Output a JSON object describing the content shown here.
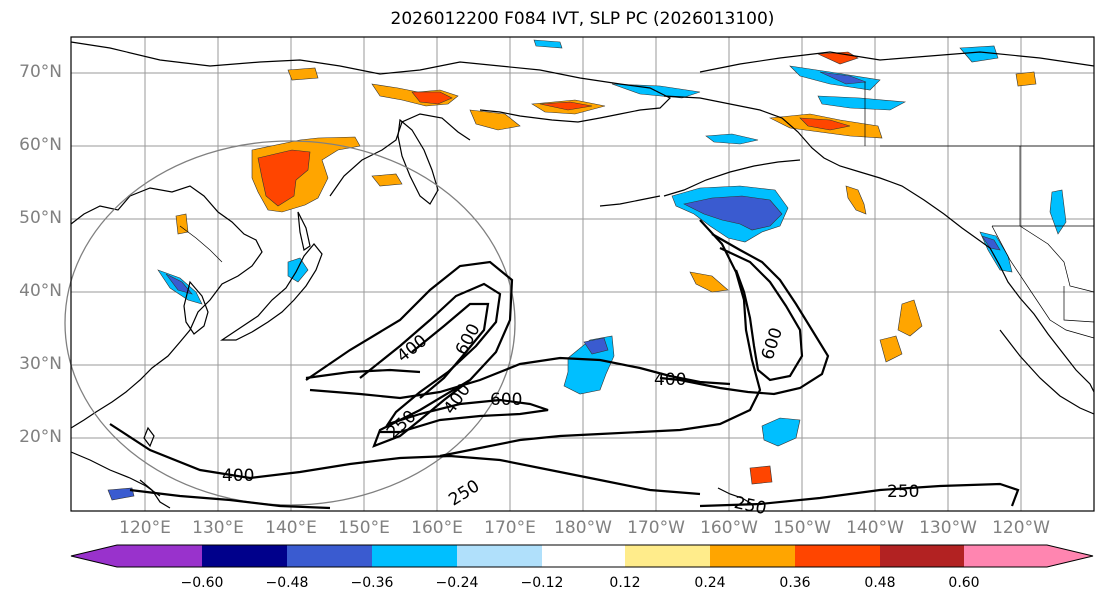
{
  "title": "2026012200 F084 IVT, SLP PC (2026013100)",
  "map": {
    "lat_labels": [
      "70°N",
      "60°N",
      "50°N",
      "40°N",
      "30°N",
      "20°N"
    ],
    "lon_labels": [
      "120°E",
      "130°E",
      "140°E",
      "150°E",
      "160°E",
      "170°E",
      "180°W",
      "170°W",
      "160°W",
      "150°W",
      "140°W",
      "130°W",
      "120°W"
    ],
    "contour_labels": [
      "400",
      "600",
      "400",
      "250",
      "600",
      "400",
      "600",
      "400",
      "250",
      "250",
      "250"
    ],
    "extent": {
      "lon_min": 111,
      "lon_max": 254,
      "lat_min": 10,
      "lat_max": 75
    }
  },
  "colorbar": {
    "tick_labels": [
      "−0.60",
      "−0.48",
      "−0.36",
      "−0.24",
      "−0.12",
      "0.12",
      "0.24",
      "0.36",
      "0.48",
      "0.60"
    ],
    "colors": [
      "#9932cc",
      "#00008b",
      "#3a5bd0",
      "#00bfff",
      "#b0e0fb",
      "#ffffff",
      "#ffec8b",
      "#ffa500",
      "#ff4500",
      "#b22222",
      "#ff85b0"
    ]
  }
}
